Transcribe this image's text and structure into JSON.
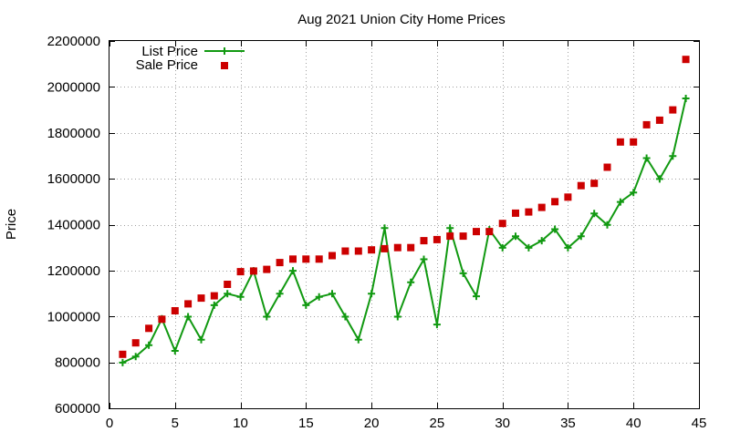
{
  "chart_data": {
    "type": "line",
    "title": "Aug 2021 Union City Home Prices",
    "xlabel": "",
    "ylabel": "Price",
    "xlim": [
      0,
      45
    ],
    "ylim": [
      600000,
      2200000
    ],
    "xticks": [
      0,
      5,
      10,
      15,
      20,
      25,
      30,
      35,
      40,
      45
    ],
    "yticks": [
      600000,
      800000,
      1000000,
      1200000,
      1400000,
      1600000,
      1800000,
      2000000,
      2200000
    ],
    "grid": true,
    "legend_position": "top-left",
    "series": [
      {
        "name": "List Price",
        "style": "line+cross",
        "color": "#119911",
        "x": [
          1,
          2,
          3,
          4,
          5,
          6,
          7,
          8,
          9,
          10,
          11,
          12,
          13,
          14,
          15,
          16,
          17,
          18,
          19,
          20,
          21,
          22,
          23,
          24,
          25,
          26,
          27,
          28,
          29,
          30,
          31,
          32,
          33,
          34,
          35,
          36,
          37,
          38,
          39,
          40,
          41,
          42,
          43,
          44
        ],
        "values": [
          799000,
          825000,
          875000,
          990000,
          850000,
          999000,
          899000,
          1049000,
          1099000,
          1085000,
          1199000,
          999000,
          1099000,
          1199000,
          1049000,
          1085000,
          1099000,
          999000,
          899000,
          1099000,
          1385000,
          999000,
          1149000,
          1249000,
          965000,
          1385000,
          1188000,
          1088000,
          1378000,
          1299000,
          1349000,
          1299000,
          1330000,
          1380000,
          1299000,
          1349000,
          1449000,
          1399000,
          1499000,
          1540000,
          1690000,
          1599000,
          1699000,
          1950000
        ]
      },
      {
        "name": "Sale Price",
        "style": "square",
        "color": "#cc0000",
        "x": [
          1,
          2,
          3,
          4,
          5,
          6,
          7,
          8,
          9,
          10,
          11,
          12,
          13,
          14,
          15,
          16,
          17,
          18,
          19,
          20,
          21,
          22,
          23,
          24,
          25,
          26,
          27,
          28,
          29,
          30,
          31,
          32,
          33,
          34,
          35,
          36,
          37,
          38,
          39,
          40,
          41,
          42,
          43,
          44
        ],
        "values": [
          835000,
          885000,
          948000,
          988000,
          1025000,
          1055000,
          1080000,
          1090000,
          1140000,
          1195000,
          1198000,
          1205000,
          1235000,
          1250000,
          1250000,
          1250000,
          1265000,
          1285000,
          1285000,
          1290000,
          1295000,
          1300000,
          1300000,
          1330000,
          1335000,
          1350000,
          1350000,
          1370000,
          1370000,
          1405000,
          1450000,
          1455000,
          1475000,
          1500000,
          1520000,
          1570000,
          1580000,
          1650000,
          1760000,
          1760000,
          1835000,
          1855000,
          1900000,
          2120000
        ]
      }
    ]
  }
}
